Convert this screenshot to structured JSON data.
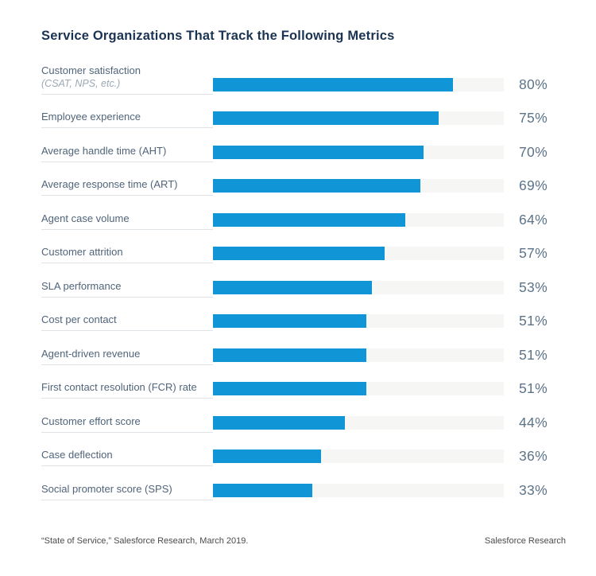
{
  "title": "Service Organizations That Track the Following Metrics",
  "chart_data": {
    "type": "bar",
    "orientation": "horizontal",
    "title": "Service Organizations That Track the Following Metrics",
    "categories": [
      "Customer satisfaction (CSAT, NPS, etc.)",
      "Employee experience",
      "Average handle time (AHT)",
      "Average response time (ART)",
      "Agent case volume",
      "Customer attrition",
      "SLA performance",
      "Cost per contact",
      "Agent-driven revenue",
      "First contact resolution (FCR) rate",
      "Customer effort score",
      "Case deflection",
      "Social promoter score (SPS)"
    ],
    "values": [
      80,
      75,
      70,
      69,
      64,
      57,
      53,
      51,
      51,
      51,
      44,
      36,
      33
    ],
    "value_labels": [
      "80%",
      "75%",
      "70%",
      "69%",
      "64%",
      "57%",
      "53%",
      "51%",
      "51%",
      "51%",
      "44%",
      "36%",
      "33%"
    ],
    "xlim": [
      0,
      100
    ],
    "grid": false,
    "legend": false,
    "bar_color": "#1096d6",
    "track_color": "#f6f6f4"
  },
  "rows": [
    {
      "label": "Customer satisfaction",
      "sublabel": "(CSAT, NPS, etc.)",
      "value": 80,
      "display": "80%"
    },
    {
      "label": "Employee experience",
      "sublabel": "",
      "value": 75,
      "display": "75%"
    },
    {
      "label": "Average handle time (AHT)",
      "sublabel": "",
      "value": 70,
      "display": "70%"
    },
    {
      "label": "Average response time (ART)",
      "sublabel": "",
      "value": 69,
      "display": "69%"
    },
    {
      "label": "Agent case volume",
      "sublabel": "",
      "value": 64,
      "display": "64%"
    },
    {
      "label": "Customer attrition",
      "sublabel": "",
      "value": 57,
      "display": "57%"
    },
    {
      "label": "SLA performance",
      "sublabel": "",
      "value": 53,
      "display": "53%"
    },
    {
      "label": "Cost per contact",
      "sublabel": "",
      "value": 51,
      "display": "51%"
    },
    {
      "label": "Agent-driven revenue",
      "sublabel": "",
      "value": 51,
      "display": "51%"
    },
    {
      "label": "First contact resolution (FCR) rate",
      "sublabel": "",
      "value": 51,
      "display": "51%"
    },
    {
      "label": "Customer effort score",
      "sublabel": "",
      "value": 44,
      "display": "44%"
    },
    {
      "label": "Case deflection",
      "sublabel": "",
      "value": 36,
      "display": "36%"
    },
    {
      "label": "Social promoter score (SPS)",
      "sublabel": "",
      "value": 33,
      "display": "33%"
    }
  ],
  "footer": {
    "source": "“State of Service,” Salesforce Research, March 2019.",
    "brand": "Salesforce Research"
  },
  "colors": {
    "bar": "#1096d6",
    "track": "#f6f6f4",
    "title_text": "#1a3352",
    "label_text": "#50647a",
    "value_text": "#5c7388",
    "divider": "#dee3e8"
  }
}
